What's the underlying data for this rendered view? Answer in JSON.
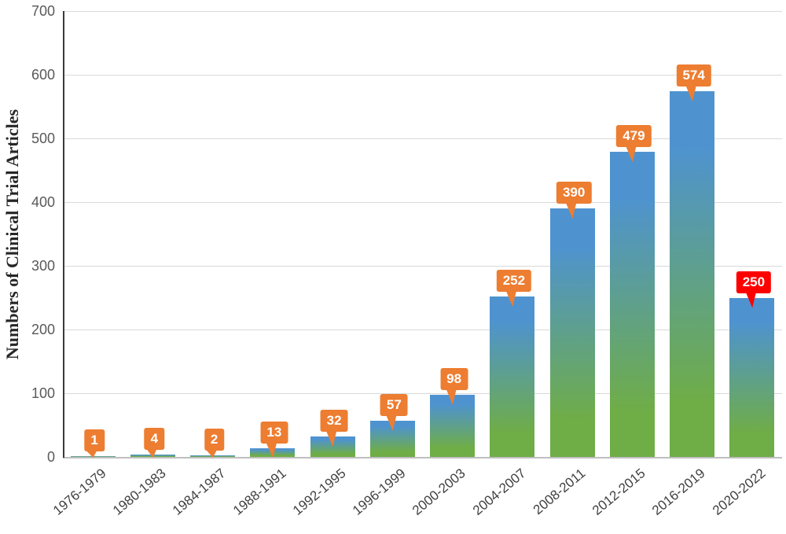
{
  "chart_data": {
    "type": "bar",
    "title": "",
    "ylabel": "Numbers of Clinical Trial Articles",
    "xlabel": "",
    "categories": [
      "1976-1979",
      "1980-1983",
      "1984-1987",
      "1988-1991",
      "1992-1995",
      "1996-1999",
      "2000-2003",
      "2004-2007",
      "2008-2011",
      "2012-2015",
      "2016-2019",
      "2020-2022"
    ],
    "values": [
      1,
      4,
      2,
      13,
      32,
      57,
      98,
      252,
      390,
      479,
      574,
      250
    ],
    "data_labels": [
      "1",
      "4",
      "2",
      "13",
      "32",
      "57",
      "98",
      "252",
      "390",
      "479",
      "574",
      "250"
    ],
    "ylim": [
      0,
      700
    ],
    "yticks": [
      0,
      100,
      200,
      300,
      400,
      500,
      600,
      700
    ],
    "grid": "horizontal",
    "legend": false,
    "highlight_index": 11
  },
  "style": {
    "bar_top_color": "#4E93D0",
    "bar_bottom_color": "#6FAD47",
    "callout_color": "#ED7D31",
    "callout_highlight_color": "#FF0000",
    "callout_text_color": "#FFFFFF",
    "gridline_color": "#D9D9D9",
    "x_axis_line_color": "#BFBFBF",
    "y_axis_line_color": "#3A3A3A",
    "y_tick_text_color": "#595959",
    "x_tick_text_color": "#404040",
    "y_title_color": "#262626",
    "background_color": "#FFFFFF"
  }
}
